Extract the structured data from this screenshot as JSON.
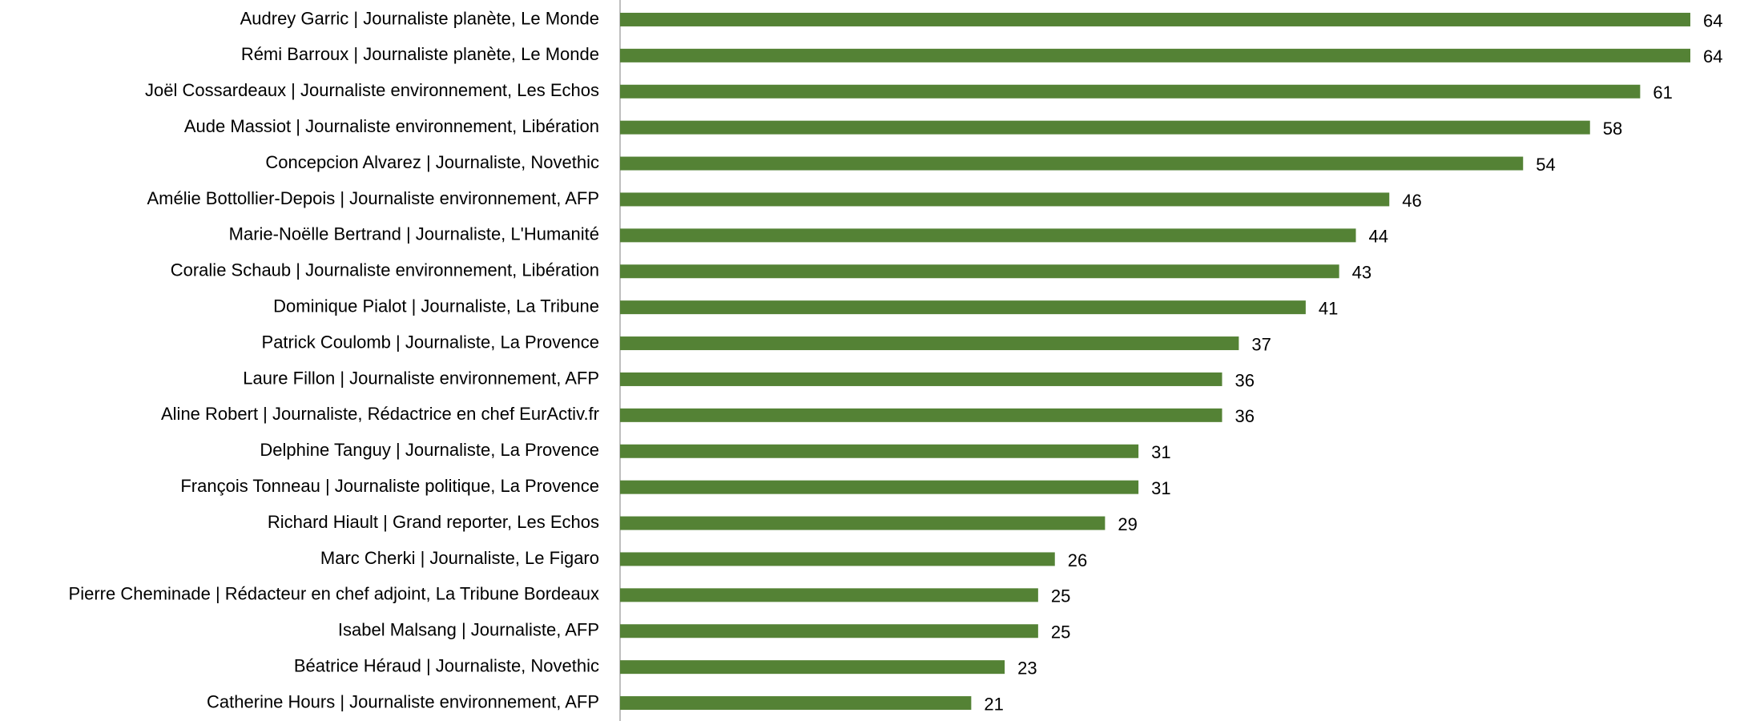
{
  "chart_data": {
    "type": "bar",
    "orientation": "horizontal",
    "color": "#548235",
    "categories": [
      "Audrey Garric | Journaliste planète, Le Monde",
      "Rémi Barroux | Journaliste planète, Le Monde",
      "Joël Cossardeaux | Journaliste environnement, Les Echos",
      "Aude Massiot | Journaliste environnement, Libération",
      "Concepcion Alvarez | Journaliste, Novethic",
      "Amélie Bottollier-Depois | Journaliste environnement, AFP",
      "Marie-Noëlle Bertrand | Journaliste, L'Humanité",
      "Coralie Schaub | Journaliste environnement, Libération",
      "Dominique Pialot | Journaliste, La Tribune",
      "Patrick Coulomb | Journaliste, La Provence",
      "Laure Fillon | Journaliste environnement, AFP",
      "Aline Robert | Journaliste, Rédactrice en chef EurActiv.fr",
      "Delphine Tanguy | Journaliste, La Provence",
      "François Tonneau | Journaliste politique, La Provence",
      "Richard Hiault | Grand reporter, Les Echos",
      "Marc Cherki | Journaliste, Le Figaro",
      "Pierre Cheminade | Rédacteur en chef adjoint, La Tribune Bordeaux",
      "Isabel Malsang | Journaliste, AFP",
      "Béatrice Héraud | Journaliste, Novethic",
      "Catherine Hours | Journaliste environnement, AFP"
    ],
    "values": [
      64,
      64,
      61,
      58,
      54,
      46,
      44,
      43,
      41,
      37,
      36,
      36,
      31,
      31,
      29,
      26,
      25,
      25,
      23,
      21
    ]
  }
}
